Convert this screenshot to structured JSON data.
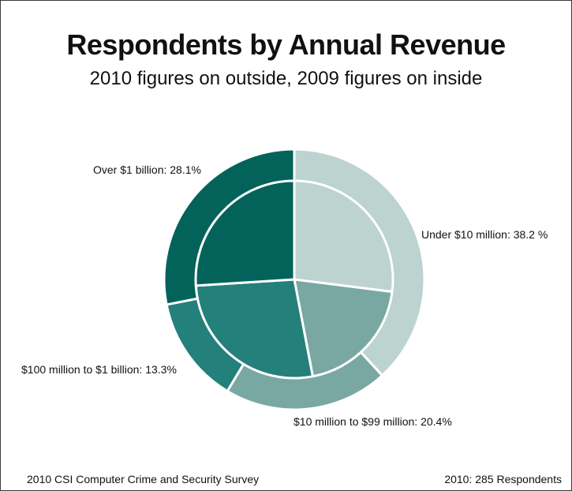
{
  "chart_data": {
    "type": "pie",
    "title": "Respondents by Annual Revenue",
    "subtitle": "2010 figures on outside, 2009 figures on inside",
    "categories": [
      "Under $10 million",
      "$10 million to $99 million",
      "$100 million to $1 billion",
      "Over $1 billion"
    ],
    "series": [
      {
        "name": "2010",
        "values": [
          38.2,
          20.4,
          13.3,
          28.1
        ]
      },
      {
        "name": "2009",
        "values": [
          27.0,
          20.0,
          27.0,
          26.0
        ]
      }
    ],
    "labels": [
      "Under $10 million: 38.2 %",
      "$10 million to $99 million: 20.4%",
      "$100 million to $1 billion: 13.3%",
      "Over $1 billion: 28.1%"
    ],
    "colors": [
      "#bcd3d0",
      "#79a8a2",
      "#23807a",
      "#03635b"
    ]
  },
  "footer": {
    "source": "2010 CSI Computer Crime and Security Survey",
    "respondents": "2010: 285 Respondents"
  }
}
